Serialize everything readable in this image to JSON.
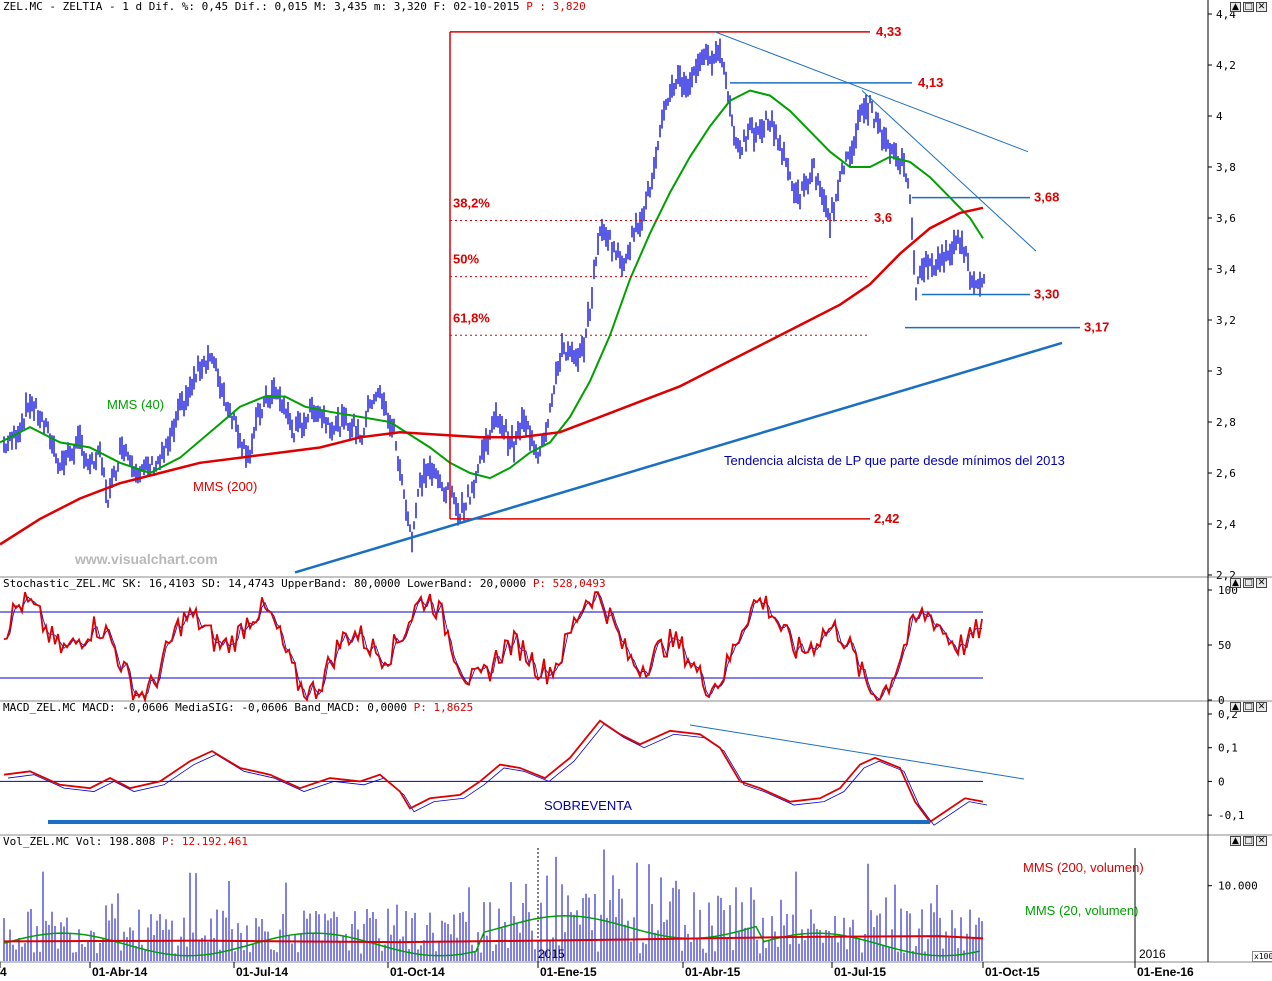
{
  "header": {
    "main": "ZEL.MC - ZELTIA -   1 d Dif. %: 0,45 Dif.: 0,015 M: 3,435 m: 3,320 F: 02-10-2015",
    "p_label": "P : 3,820"
  },
  "watermark": "www.visualchart.com",
  "colors": {
    "price": "#0000dd",
    "mms40": "#00a000",
    "mms200": "#dd0000",
    "annot": "#dd0000",
    "trend": "#1a6fc0",
    "trend_text": "#0000aa"
  },
  "window_buttons": [
    "▲",
    "□",
    "✕"
  ],
  "chart_data": [
    {
      "type": "line",
      "name": "price",
      "ylim": [
        2.2,
        4.4
      ],
      "yticks": [
        "4,4",
        "4,2",
        "4",
        "3,8",
        "3,6",
        "3,4",
        "3,2",
        "3",
        "2,8",
        "2,6",
        "2,4",
        "2,2"
      ],
      "series": [
        {
          "name": "ZEL.MC",
          "values": [
            [
              0,
              2.7
            ],
            [
              10,
              2.72
            ],
            [
              20,
              2.78
            ],
            [
              30,
              2.88
            ],
            [
              40,
              2.82
            ],
            [
              50,
              2.74
            ],
            [
              60,
              2.63
            ],
            [
              70,
              2.68
            ],
            [
              80,
              2.72
            ],
            [
              90,
              2.62
            ],
            [
              100,
              2.67
            ],
            [
              108,
              2.5
            ],
            [
              115,
              2.6
            ],
            [
              122,
              2.72
            ],
            [
              130,
              2.66
            ],
            [
              140,
              2.6
            ],
            [
              150,
              2.62
            ],
            [
              160,
              2.65
            ],
            [
              170,
              2.72
            ],
            [
              180,
              2.85
            ],
            [
              190,
              2.92
            ],
            [
              200,
              3.02
            ],
            [
              210,
              3.06
            ],
            [
              218,
              2.98
            ],
            [
              226,
              2.88
            ],
            [
              235,
              2.8
            ],
            [
              244,
              2.7
            ],
            [
              250,
              2.68
            ],
            [
              258,
              2.82
            ],
            [
              266,
              2.88
            ],
            [
              274,
              2.92
            ],
            [
              284,
              2.86
            ],
            [
              294,
              2.76
            ],
            [
              304,
              2.8
            ],
            [
              314,
              2.86
            ],
            [
              324,
              2.82
            ],
            [
              334,
              2.78
            ],
            [
              344,
              2.8
            ],
            [
              354,
              2.78
            ],
            [
              362,
              2.74
            ],
            [
              370,
              2.88
            ],
            [
              378,
              2.92
            ],
            [
              386,
              2.84
            ],
            [
              394,
              2.76
            ],
            [
              400,
              2.6
            ],
            [
              406,
              2.48
            ],
            [
              412,
              2.34
            ],
            [
              420,
              2.56
            ],
            [
              428,
              2.62
            ],
            [
              436,
              2.58
            ],
            [
              444,
              2.54
            ],
            [
              452,
              2.5
            ],
            [
              460,
              2.45
            ],
            [
              468,
              2.5
            ],
            [
              475,
              2.57
            ],
            [
              482,
              2.68
            ],
            [
              490,
              2.76
            ],
            [
              498,
              2.82
            ],
            [
              506,
              2.76
            ],
            [
              514,
              2.7
            ],
            [
              522,
              2.8
            ],
            [
              530,
              2.76
            ],
            [
              538,
              2.68
            ],
            [
              546,
              2.78
            ],
            [
              554,
              2.92
            ],
            [
              562,
              3.1
            ],
            [
              570,
              3.06
            ],
            [
              578,
              3.03
            ],
            [
              586,
              3.14
            ],
            [
              592,
              3.3
            ],
            [
              598,
              3.52
            ],
            [
              606,
              3.55
            ],
            [
              614,
              3.48
            ],
            [
              622,
              3.42
            ],
            [
              630,
              3.5
            ],
            [
              638,
              3.58
            ],
            [
              646,
              3.66
            ],
            [
              654,
              3.78
            ],
            [
              662,
              3.96
            ],
            [
              670,
              4.1
            ],
            [
              678,
              4.15
            ],
            [
              686,
              4.12
            ],
            [
              694,
              4.16
            ],
            [
              702,
              4.25
            ],
            [
              710,
              4.2
            ],
            [
              716,
              4.28
            ],
            [
              722,
              4.22
            ],
            [
              728,
              4.1
            ],
            [
              734,
              3.92
            ],
            [
              742,
              3.88
            ],
            [
              750,
              3.94
            ],
            [
              758,
              3.92
            ],
            [
              766,
              3.98
            ],
            [
              774,
              3.96
            ],
            [
              782,
              3.86
            ],
            [
              790,
              3.76
            ],
            [
              798,
              3.68
            ],
            [
              806,
              3.72
            ],
            [
              814,
              3.8
            ],
            [
              822,
              3.66
            ],
            [
              830,
              3.6
            ],
            [
              838,
              3.7
            ],
            [
              846,
              3.84
            ],
            [
              854,
              3.9
            ],
            [
              862,
              4.02
            ],
            [
              870,
              4.04
            ],
            [
              878,
              3.96
            ],
            [
              886,
              3.88
            ],
            [
              894,
              3.86
            ],
            [
              902,
              3.82
            ],
            [
              910,
              3.7
            ],
            [
              916,
              3.32
            ],
            [
              924,
              3.42
            ],
            [
              932,
              3.4
            ],
            [
              940,
              3.44
            ],
            [
              948,
              3.46
            ],
            [
              956,
              3.5
            ],
            [
              962,
              3.52
            ],
            [
              970,
              3.38
            ],
            [
              978,
              3.34
            ],
            [
              984,
              3.38
            ]
          ]
        },
        {
          "name": "MMS (40)",
          "values": [
            [
              0,
              2.72
            ],
            [
              30,
              2.78
            ],
            [
              60,
              2.72
            ],
            [
              90,
              2.7
            ],
            [
              120,
              2.64
            ],
            [
              150,
              2.6
            ],
            [
              180,
              2.66
            ],
            [
              210,
              2.76
            ],
            [
              240,
              2.86
            ],
            [
              265,
              2.9
            ],
            [
              285,
              2.9
            ],
            [
              305,
              2.86
            ],
            [
              330,
              2.84
            ],
            [
              360,
              2.82
            ],
            [
              390,
              2.8
            ],
            [
              410,
              2.75
            ],
            [
              430,
              2.7
            ],
            [
              450,
              2.64
            ],
            [
              470,
              2.6
            ],
            [
              490,
              2.58
            ],
            [
              510,
              2.62
            ],
            [
              530,
              2.68
            ],
            [
              550,
              2.72
            ],
            [
              570,
              2.82
            ],
            [
              590,
              2.96
            ],
            [
              610,
              3.14
            ],
            [
              630,
              3.36
            ],
            [
              650,
              3.54
            ],
            [
              670,
              3.7
            ],
            [
              690,
              3.84
            ],
            [
              710,
              3.96
            ],
            [
              730,
              4.06
            ],
            [
              750,
              4.1
            ],
            [
              770,
              4.08
            ],
            [
              790,
              4.02
            ],
            [
              810,
              3.94
            ],
            [
              830,
              3.86
            ],
            [
              850,
              3.8
            ],
            [
              870,
              3.8
            ],
            [
              890,
              3.84
            ],
            [
              910,
              3.82
            ],
            [
              930,
              3.76
            ],
            [
              950,
              3.68
            ],
            [
              970,
              3.6
            ],
            [
              983,
              3.52
            ]
          ]
        },
        {
          "name": "MMS (200)",
          "values": [
            [
              0,
              2.32
            ],
            [
              40,
              2.42
            ],
            [
              80,
              2.5
            ],
            [
              120,
              2.56
            ],
            [
              160,
              2.6
            ],
            [
              200,
              2.64
            ],
            [
              240,
              2.66
            ],
            [
              280,
              2.68
            ],
            [
              320,
              2.7
            ],
            [
              360,
              2.74
            ],
            [
              400,
              2.76
            ],
            [
              440,
              2.75
            ],
            [
              480,
              2.74
            ],
            [
              520,
              2.74
            ],
            [
              560,
              2.76
            ],
            [
              600,
              2.82
            ],
            [
              640,
              2.88
            ],
            [
              680,
              2.94
            ],
            [
              720,
              3.02
            ],
            [
              760,
              3.1
            ],
            [
              800,
              3.18
            ],
            [
              840,
              3.26
            ],
            [
              870,
              3.34
            ],
            [
              900,
              3.46
            ],
            [
              930,
              3.56
            ],
            [
              960,
              3.62
            ],
            [
              983,
              3.64
            ]
          ]
        }
      ],
      "annotations": [
        {
          "label": "4,33",
          "value": 4.33
        },
        {
          "label": "4,13",
          "value": 4.13
        },
        {
          "label": "3,68",
          "value": 3.68
        },
        {
          "label": "3,6",
          "value": 3.6
        },
        {
          "label": "3,30",
          "value": 3.3
        },
        {
          "label": "3,17",
          "value": 3.17
        },
        {
          "label": "2,42",
          "value": 2.42
        }
      ],
      "fib_levels": [
        {
          "label": "38,2%",
          "value": 3.59
        },
        {
          "label": "50%",
          "value": 3.37
        },
        {
          "label": "61,8%",
          "value": 3.14
        }
      ],
      "ma_labels": {
        "mms40": "MMS (40)",
        "mms200": "MMS (200)"
      },
      "trend_text": "Tendencia alcista de LP que parte desde mínimos del 2013"
    },
    {
      "type": "line",
      "name": "stochastic",
      "header": "Stochastic_ZEL.MC SK: 16,4103 SD: 14,4743 UpperBand: 80,0000 LowerBand: 20,0000",
      "p_label": "P: 528,0493",
      "ylim": [
        0,
        100
      ],
      "yticks": [
        "100",
        "50",
        "0"
      ],
      "bands": [
        80,
        20
      ]
    },
    {
      "type": "line",
      "name": "macd",
      "header": "MACD_ZEL.MC MACD: -0,0606 MediaSIG: -0,0606 Band_MACD: 0,0000",
      "p_label": "P: 1,8625",
      "ylim": [
        -0.15,
        0.2
      ],
      "yticks": [
        "0,2",
        "0,1",
        "0",
        "-0,1"
      ],
      "oversold_text": "SOBREVENTA"
    },
    {
      "type": "bar",
      "name": "volume",
      "header": "Vol_ZEL.MC Vol: 198.808",
      "p_label": "P: 12.192.461",
      "yticks": [
        "10.000"
      ],
      "unit": "x100",
      "ma_labels": {
        "mms200": "MMS (200, volumen)",
        "mms20": "MMS (20, volumen)"
      }
    }
  ],
  "xaxis": {
    "year_labels": [
      "2015",
      "2016"
    ],
    "dates": [
      "4",
      "01-Abr-14",
      "01-Jul-14",
      "01-Oct-14",
      "01-Ene-15",
      "01-Abr-15",
      "01-Jul-15",
      "01-Oct-15",
      "01-Ene-16"
    ]
  }
}
